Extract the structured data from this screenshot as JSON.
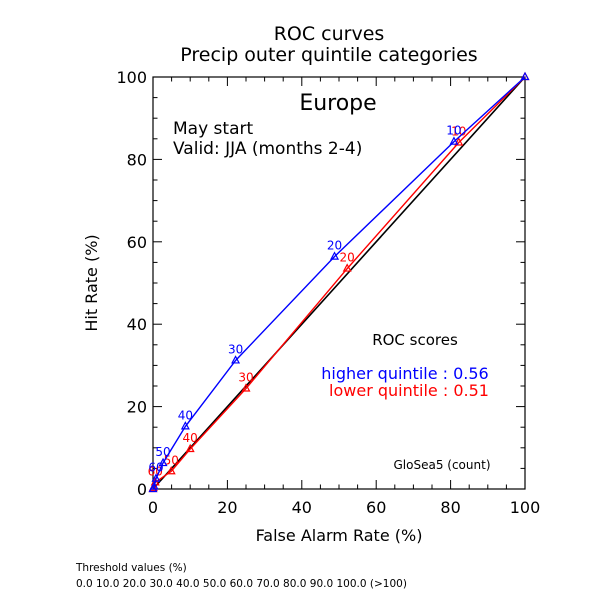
{
  "chart_data": {
    "type": "line",
    "title": "ROC curves",
    "subtitle": "Precip outer quintile categories",
    "region": "Europe",
    "start_text": "May start",
    "valid_text": "Valid: JJA (months 2-4)",
    "xlabel": "False Alarm Rate (%)",
    "ylabel": "Hit Rate (%)",
    "xlim": [
      0,
      100
    ],
    "ylim": [
      0,
      100
    ],
    "x_ticks": [
      0,
      20,
      40,
      60,
      80,
      100
    ],
    "y_ticks": [
      0,
      20,
      40,
      60,
      80,
      100
    ],
    "grid": false,
    "scores_title": "ROC scores",
    "model_label": "GloSea5 (count)",
    "diagonal": [
      [
        0,
        0
      ],
      [
        100,
        100
      ]
    ],
    "series": [
      {
        "label": "higher quintile : 0.56",
        "color": "#0000ff",
        "points": [
          {
            "x": 0,
            "y": 0,
            "label": ""
          },
          {
            "x": 0.3,
            "y": 0.6,
            "label": ""
          },
          {
            "x": 0.8,
            "y": 2.5,
            "label": "60"
          },
          {
            "x": 2.7,
            "y": 6.3,
            "label": "50"
          },
          {
            "x": 8.7,
            "y": 15.2,
            "label": "40"
          },
          {
            "x": 22.2,
            "y": 31.2,
            "label": "30"
          },
          {
            "x": 48.8,
            "y": 56.4,
            "label": "20"
          },
          {
            "x": 80.9,
            "y": 84.3,
            "label": "10"
          },
          {
            "x": 100,
            "y": 100,
            "label": ""
          }
        ]
      },
      {
        "label": "lower quintile : 0.51",
        "color": "#ff0000",
        "points": [
          {
            "x": 0,
            "y": 0,
            "label": ""
          },
          {
            "x": 0.1,
            "y": 0.3,
            "label": ""
          },
          {
            "x": 0.6,
            "y": 1.6,
            "label": "60"
          },
          {
            "x": 4.9,
            "y": 4.3,
            "label": "50"
          },
          {
            "x": 10.0,
            "y": 9.7,
            "label": "40"
          },
          {
            "x": 25.0,
            "y": 24.4,
            "label": "30"
          },
          {
            "x": 52.2,
            "y": 53.5,
            "label": "20"
          },
          {
            "x": 82.2,
            "y": 84.1,
            "label": "10"
          },
          {
            "x": 100,
            "y": 100,
            "label": ""
          }
        ]
      }
    ]
  },
  "footer": {
    "threshold_title": "Threshold values (%)",
    "threshold_values": "0.0 10.0 20.0 30.0 40.0 50.0 60.0 70.0 80.0 90.0 100.0 (>100)"
  }
}
